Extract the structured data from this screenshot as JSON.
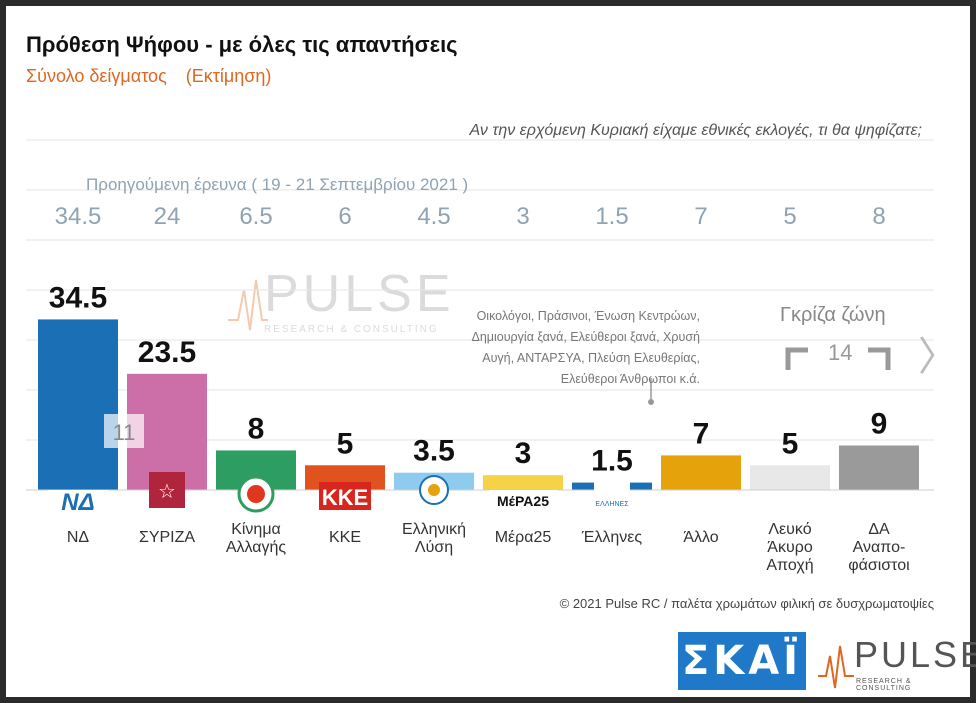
{
  "header": {
    "title": "Πρόθεση Ψήφου - με όλες τις απαντήσεις",
    "subtitle": "Σύνολο δείγματος",
    "subtitle_estimate": "(Εκτίμηση)",
    "question": "Αν την ερχόμενη Κυριακή είχαμε εθνικές εκλογές, τι θα ψηφίζατε;"
  },
  "previous_survey": {
    "label": "Προηγούμενη έρευνα ( 19 - 21 Σεπτεμβρίου 2021 )",
    "values": [
      "34.5",
      "24",
      "6.5",
      "6",
      "4.5",
      "3",
      "1.5",
      "7",
      "5",
      "8"
    ]
  },
  "chart_data": {
    "type": "bar",
    "categories": [
      "ΝΔ",
      "ΣΥΡΙΖΑ",
      "Κίνημα Αλλαγής",
      "ΚΚΕ",
      "Ελληνική Λύση",
      "Μέρα25",
      "Έλληνες",
      "Άλλο",
      "Λευκό Άκυρο Αποχή",
      "ΔΑ Αναπο-φάσιστοι"
    ],
    "category_lines": [
      [
        "ΝΔ"
      ],
      [
        "ΣΥΡΙΖΑ"
      ],
      [
        "Κίνημα",
        "Αλλαγής"
      ],
      [
        "ΚΚΕ"
      ],
      [
        "Ελληνική",
        "Λύση"
      ],
      [
        "Μέρα25"
      ],
      [
        "Έλληνες"
      ],
      [
        "Άλλο"
      ],
      [
        "Λευκό",
        "Άκυρο",
        "Αποχή"
      ],
      [
        "ΔΑ",
        "Αναπο-",
        "φάσιστοι"
      ]
    ],
    "values": [
      34.5,
      23.5,
      8,
      5,
      3.5,
      3,
      1.5,
      7,
      5,
      9
    ],
    "value_labels": [
      "34.5",
      "23.5",
      "8",
      "5",
      "3.5",
      "3",
      "1.5",
      "7",
      "5",
      "9"
    ],
    "colors": [
      "#1a6fb5",
      "#cc6fa8",
      "#2e9d62",
      "#e0531f",
      "#8ecbee",
      "#f6d246",
      "#1a6fb5",
      "#e6a20a",
      "#e8e8e8",
      "#9a9a9a"
    ],
    "ylim": [
      0,
      36
    ],
    "inner_value": {
      "index": 0,
      "value": "11"
    },
    "grid": true
  },
  "annotations": {
    "other_note_lines": [
      "Οικολόγοι, Πράσινοι, Ένωση Κεντρώων,",
      "Δημιουργία ξανά, Ελεύθεροι ξανά, Χρυσή",
      "Αυγή, ΑΝΤΑΡΣΥΑ, Πλεύση Ελευθερίας,",
      "Ελεύθεροι Άνθρωποι κ.ά."
    ],
    "grey_zone_label": "Γκρίζα ζώνη",
    "grey_zone_value": "14"
  },
  "party_logos": [
    "ΝΔ",
    "",
    "",
    "ΚΚΕ",
    "",
    "ΜέΡΑ25",
    "ΕΛΛΗΝΕΣ",
    "",
    "",
    ""
  ],
  "footer": {
    "copyright": "© 2021 Pulse RC / παλέτα χρωμάτων φιλική σε δυσχρωματοψίες"
  },
  "logos": {
    "skai": "ΣΚΑΪ",
    "pulse": "PULSE",
    "pulse_sub": "RESEARCH & CONSULTING"
  },
  "watermark": {
    "word": "PULSE",
    "sub": "RESEARCH & CONSULTING"
  }
}
